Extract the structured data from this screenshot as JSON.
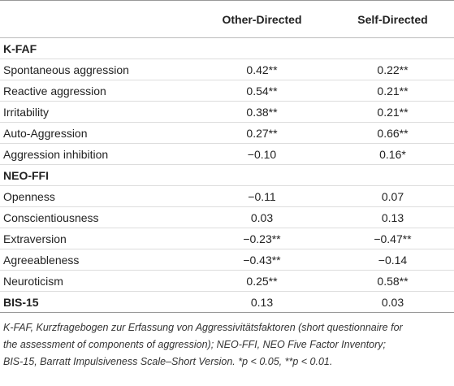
{
  "table": {
    "columns": [
      "Other-Directed",
      "Self-Directed"
    ],
    "rows": [
      {
        "section": "K-FAF"
      },
      {
        "label": "Spontaneous aggression",
        "values": [
          "0.42**",
          "0.22**"
        ]
      },
      {
        "label": "Reactive aggression",
        "values": [
          "0.54**",
          "0.21**"
        ]
      },
      {
        "label": "Irritability",
        "values": [
          "0.38**",
          "0.21**"
        ]
      },
      {
        "label": "Auto-Aggression",
        "values": [
          "0.27**",
          "0.66**"
        ]
      },
      {
        "label": "Aggression inhibition",
        "values": [
          "−0.10",
          "0.16*"
        ]
      },
      {
        "section": "NEO-FFI"
      },
      {
        "label": "Openness",
        "values": [
          "−0.11",
          "0.07"
        ]
      },
      {
        "label": "Conscientiousness",
        "values": [
          "0.03",
          "0.13"
        ]
      },
      {
        "label": "Extraversion",
        "values": [
          "−0.23**",
          "−0.47**"
        ]
      },
      {
        "label": "Agreeableness",
        "values": [
          "−0.43**",
          "−0.14"
        ]
      },
      {
        "label": "Neuroticism",
        "values": [
          "0.25**",
          "0.58**"
        ]
      },
      {
        "section": "BIS-15",
        "values": [
          "0.13",
          "0.03"
        ]
      }
    ],
    "footnote": [
      "K-FAF, Kurzfragebogen zur Erfassung von Aggressivitätsfaktoren (short questionnaire for",
      "the assessment of components of aggression); NEO-FFI, NEO Five Factor Inventory;",
      "BIS-15, Barratt Impulsiveness Scale–Short Version. *p < 0.05, **p < 0.01."
    ]
  }
}
